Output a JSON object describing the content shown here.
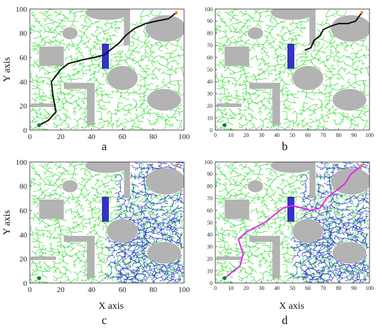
{
  "figure": {
    "panel_labels": [
      "a",
      "b",
      "c",
      "d"
    ],
    "xlabel": "X axis",
    "ylabel": "Y axis"
  },
  "chart_data": [
    {
      "type": "scatter",
      "panel": "a",
      "title": "",
      "xlabel": "",
      "ylabel": "Y axis",
      "xlim": [
        0,
        100
      ],
      "ylim": [
        0,
        100
      ],
      "xticks": [
        0,
        20,
        40,
        60,
        80,
        100
      ],
      "yticks": [
        0,
        20,
        40,
        60,
        80,
        100
      ],
      "start": [
        6,
        4
      ],
      "goal": [
        95,
        97
      ],
      "tree_color": "#33dd33",
      "series": [
        {
          "color": "#111111",
          "points": [
            [
              6,
              4
            ],
            [
              12,
              8
            ],
            [
              17,
              15
            ],
            [
              15,
              28
            ],
            [
              14,
              40
            ],
            [
              20,
              50
            ],
            [
              25,
              55
            ],
            [
              34,
              58
            ],
            [
              42,
              60
            ],
            [
              48,
              62
            ],
            [
              52,
              66
            ],
            [
              58,
              72
            ],
            [
              62,
              78
            ],
            [
              68,
              84
            ],
            [
              75,
              88
            ],
            [
              82,
              90
            ],
            [
              90,
              92
            ],
            [
              95,
              97
            ]
          ]
        }
      ]
    },
    {
      "type": "scatter",
      "panel": "b",
      "title": "",
      "xlabel": "",
      "ylabel": "",
      "xlim": [
        0,
        100
      ],
      "ylim": [
        0,
        100
      ],
      "xticks": [
        0,
        10,
        20,
        30,
        40,
        50,
        60,
        70,
        80,
        90,
        100
      ],
      "yticks": [
        0,
        10,
        20,
        30,
        40,
        50,
        60,
        70,
        80,
        90,
        100
      ],
      "start": [
        6,
        4
      ],
      "goal": [
        95,
        97
      ],
      "tree_color": "#33dd33",
      "series": [
        {
          "color": "#111111",
          "points": [
            [
              58,
              66
            ],
            [
              62,
              68
            ],
            [
              64,
              74
            ],
            [
              68,
              78
            ],
            [
              70,
              83
            ],
            [
              75,
              86
            ],
            [
              80,
              88
            ],
            [
              86,
              88
            ],
            [
              91,
              90
            ],
            [
              95,
              97
            ]
          ]
        }
      ]
    },
    {
      "type": "scatter",
      "panel": "c",
      "title": "",
      "xlabel": "X axis",
      "ylabel": "Y axis",
      "xlim": [
        0,
        100
      ],
      "ylim": [
        0,
        100
      ],
      "xticks": [
        0,
        20,
        40,
        60,
        80,
        100
      ],
      "yticks": [
        0,
        20,
        40,
        60,
        80,
        100
      ],
      "start": [
        6,
        4
      ],
      "goal": [
        95,
        97
      ],
      "tree_color": "#33dd33",
      "second_tree_color": "#2233cc",
      "series": []
    },
    {
      "type": "scatter",
      "panel": "d",
      "title": "",
      "xlabel": "X axis",
      "ylabel": "",
      "xlim": [
        0,
        100
      ],
      "ylim": [
        0,
        100
      ],
      "xticks": [
        0,
        10,
        20,
        30,
        40,
        50,
        60,
        70,
        80,
        90,
        100
      ],
      "yticks": [
        0,
        10,
        20,
        30,
        40,
        50,
        60,
        70,
        80,
        90,
        100
      ],
      "start": [
        6,
        4
      ],
      "goal": [
        95,
        97
      ],
      "tree_color": "#33dd33",
      "second_tree_color": "#2233cc",
      "series": [
        {
          "color": "#ee22ee",
          "points": [
            [
              6,
              4
            ],
            [
              10,
              8
            ],
            [
              16,
              14
            ],
            [
              18,
              24
            ],
            [
              15,
              36
            ],
            [
              20,
              42
            ],
            [
              26,
              46
            ],
            [
              32,
              50
            ],
            [
              38,
              56
            ],
            [
              44,
              62
            ],
            [
              50,
              64
            ],
            [
              56,
              62
            ],
            [
              62,
              60
            ],
            [
              68,
              62
            ],
            [
              72,
              70
            ],
            [
              78,
              76
            ],
            [
              84,
              82
            ],
            [
              88,
              90
            ],
            [
              95,
              97
            ]
          ]
        }
      ]
    }
  ]
}
